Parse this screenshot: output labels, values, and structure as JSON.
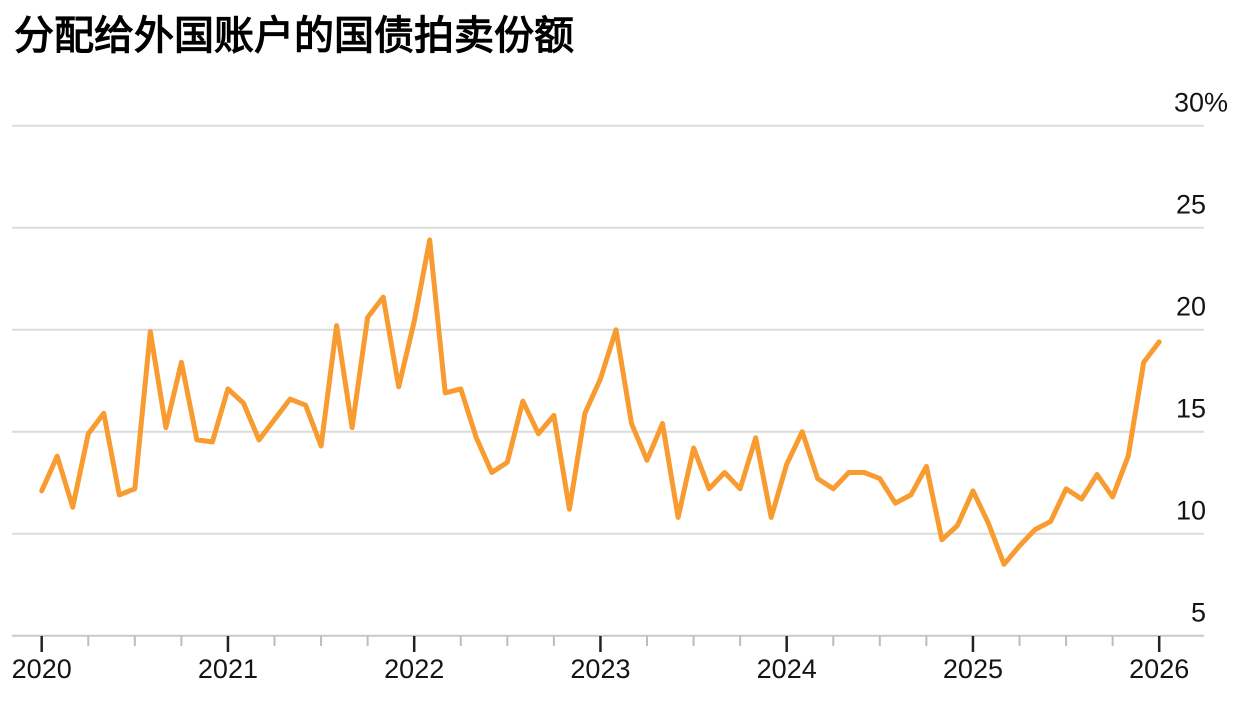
{
  "title": "分配给外国账户的国债拍卖份额",
  "chart_data": {
    "type": "line",
    "x_start": "2020-01",
    "x_freq": "monthly",
    "x_end": "2026-01",
    "x_tick_labels": [
      "2020",
      "2021",
      "2022",
      "2023",
      "2024",
      "2025",
      "2026"
    ],
    "x_minor_ticks_per_year": 3,
    "y_tick_labels": [
      "30%",
      "25",
      "20",
      "15",
      "10",
      "5"
    ],
    "y_ticks": [
      30,
      25,
      20,
      15,
      10,
      5
    ],
    "ylim": [
      5,
      30
    ],
    "grid": true,
    "legend": "none",
    "series": [
      {
        "values": [
          12.1,
          13.8,
          11.3,
          14.9,
          15.9,
          11.9,
          12.2,
          19.9,
          15.2,
          18.4,
          14.6,
          14.5,
          17.1,
          16.4,
          14.6,
          15.6,
          16.6,
          16.3,
          14.3,
          20.2,
          15.2,
          20.6,
          21.6,
          17.2,
          20.4,
          24.4,
          16.9,
          17.1,
          14.7,
          13.0,
          13.5,
          16.5,
          14.9,
          15.8,
          11.2,
          15.9,
          17.6,
          20.0,
          15.4,
          13.6,
          15.4,
          10.8,
          14.2,
          12.2,
          13.0,
          12.2,
          14.7,
          10.8,
          13.4,
          15.0,
          12.7,
          12.2,
          13.0,
          13.0,
          12.7,
          11.5,
          11.9,
          13.3,
          9.7,
          10.4,
          12.1,
          10.5,
          8.5,
          9.4,
          10.2,
          10.6,
          12.2,
          11.7,
          12.9,
          11.8,
          13.8,
          18.4,
          19.4
        ]
      }
    ],
    "colors": {
      "line": "#F89C31",
      "gridline": "#DBDBDB",
      "axis_line": "#C9C9C9",
      "major_tick": "#222222",
      "minor_tick": "#BDBDBD",
      "label": "#141414",
      "title": "#000000",
      "background": "#FFFFFF"
    }
  }
}
